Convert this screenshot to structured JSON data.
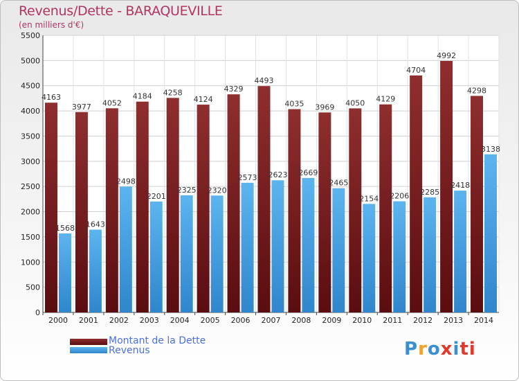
{
  "title": "Revenus/Dette - BARAQUEVILLE",
  "subtitle": "(en milliers d'€)",
  "logo": {
    "letters": [
      "P",
      "r",
      "o",
      "x",
      "i",
      "t",
      "i"
    ],
    "colors": [
      "#3a8fd0",
      "#f2a22c",
      "#3a8fd0",
      "#e03a2c",
      "#3a8fd0",
      "#e03a2c",
      "#e03a2c"
    ]
  },
  "colors": {
    "dette": "#7a1e22",
    "revenus": "#4aa3e3",
    "title": "#b13560"
  },
  "legend": [
    {
      "label": "Montant de la Dette",
      "color": "#7a1e22"
    },
    {
      "label": "Revenus",
      "color": "#4aa3e3"
    }
  ],
  "chart_data": {
    "type": "bar",
    "title": "Revenus/Dette - BARAQUEVILLE",
    "subtitle": "(en milliers d'€)",
    "categories": [
      "2000",
      "2001",
      "2002",
      "2003",
      "2004",
      "2005",
      "2006",
      "2007",
      "2008",
      "2009",
      "2010",
      "2011",
      "2012",
      "2013",
      "2014"
    ],
    "series": [
      {
        "name": "Montant de la Dette",
        "values": [
          4163,
          3977,
          4052,
          4184,
          4258,
          4124,
          4329,
          4493,
          4035,
          3969,
          4050,
          4129,
          4704,
          4992,
          4298
        ]
      },
      {
        "name": "Revenus",
        "values": [
          1568,
          1643,
          2498,
          2201,
          2325,
          2320,
          2573,
          2623,
          2669,
          2465,
          2154,
          2206,
          2285,
          2418,
          3138
        ]
      }
    ],
    "ylim": [
      0,
      5500
    ],
    "yticks": [
      0,
      500,
      1000,
      1500,
      2000,
      2500,
      3000,
      3500,
      4000,
      4500,
      5000,
      5500
    ],
    "grid": true,
    "legend_position": "bottom-left"
  }
}
